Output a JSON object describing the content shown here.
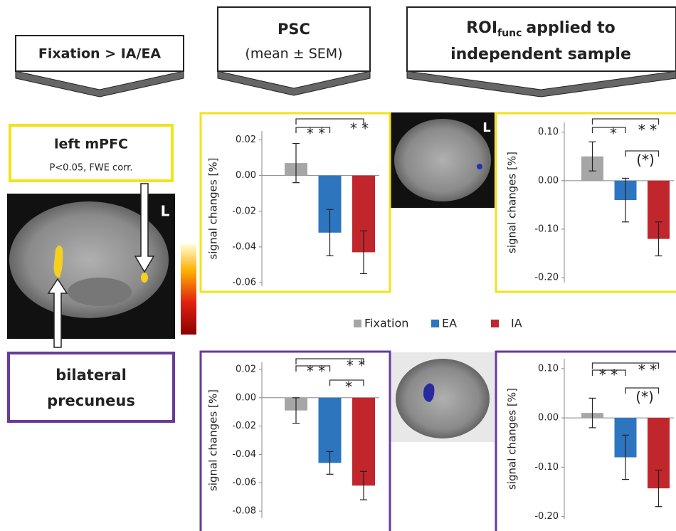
{
  "headers": {
    "fixation": "Fixation > IA/EA",
    "psc": "PSC",
    "psc_sub": "(mean ± SEM)",
    "roi": "ROI",
    "roi_sub": "func",
    "roi_rest": "applied to",
    "roi_line2": "independent sample"
  },
  "regions": [
    {
      "name": "left mPFC",
      "note": "P<0.05, FWE corr."
    },
    {
      "name_line1": "bilateral",
      "name_line2": "precuneus"
    }
  ],
  "hemisphere_labels": [
    "L",
    "L"
  ],
  "legend": [
    {
      "name": "Fixation",
      "color": "#a6a6a6"
    },
    {
      "name": "EA",
      "color": "#2e75c0"
    },
    {
      "name": "IA",
      "color": "#c0262c"
    }
  ],
  "chart_data": [
    {
      "type": "bar",
      "y_label": "signal changes [%]",
      "values": [
        0.007,
        -0.032,
        -0.043
      ],
      "errors": [
        0.011,
        0.013,
        0.012
      ],
      "ylim": [
        -0.062,
        0.025
      ],
      "yticks": [
        0.02,
        {
          "value": 0,
          "label": "0.00"
        },
        -0.02,
        -0.04,
        -0.06
      ],
      "annotations": [
        "* *",
        "* *"
      ]
    },
    {
      "type": "bar",
      "y_label": "signal changes [%]",
      "values": [
        0.05,
        -0.04,
        -0.12
      ],
      "errors": [
        0.03,
        0.045,
        0.035
      ],
      "ylim": [
        -0.21,
        0.12
      ],
      "yticks": [
        {
          "value": 0.1,
          "label": "0.10"
        },
        {
          "value": 0,
          "label": "0.00"
        },
        {
          "value": -0.1,
          "label": "-0.10"
        },
        {
          "value": -0.2,
          "label": "-0.20"
        }
      ],
      "annotations": [
        "* *",
        "*",
        "(*)"
      ]
    },
    {
      "type": "bar",
      "y_label": "signal changes [%]",
      "values": [
        -0.009,
        -0.046,
        -0.062
      ],
      "errors": [
        0.009,
        0.008,
        0.01
      ],
      "ylim": [
        -0.085,
        0.025
      ],
      "yticks": [
        0.02,
        {
          "value": 0,
          "label": "0.00"
        },
        -0.02,
        -0.04,
        -0.06,
        -0.08
      ],
      "annotations": [
        "* *",
        "* *",
        "*"
      ]
    },
    {
      "type": "bar",
      "y_label": "signal changes [%]",
      "values": [
        0.01,
        -0.08,
        -0.143
      ],
      "errors": [
        0.03,
        0.045,
        0.037
      ],
      "ylim": [
        -0.205,
        0.12
      ],
      "yticks": [
        {
          "value": 0.1,
          "label": "0.10"
        },
        {
          "value": 0,
          "label": "0.00"
        },
        {
          "value": -0.1,
          "label": "-0.10"
        },
        {
          "value": -0.2,
          "label": "-0.20"
        }
      ],
      "annotations": [
        "* *",
        "* *",
        "(*)"
      ]
    }
  ]
}
